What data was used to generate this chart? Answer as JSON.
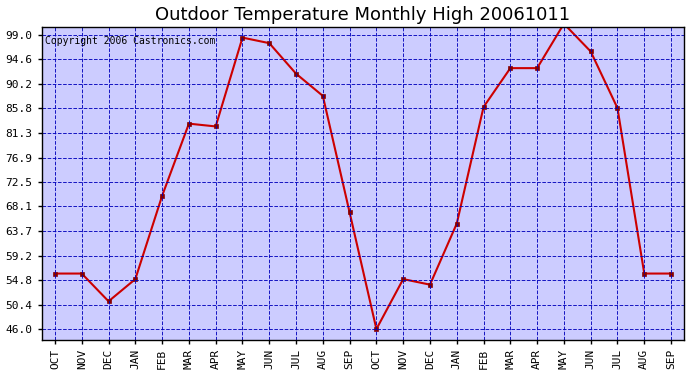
{
  "title": "Outdoor Temperature Monthly High 20061011",
  "copyright": "Copyright 2006 Castronics.com",
  "x_labels": [
    "OCT",
    "NOV",
    "DEC",
    "JAN",
    "FEB",
    "MAR",
    "APR",
    "MAY",
    "JUN",
    "JUL",
    "AUG",
    "SEP",
    "OCT",
    "NOV",
    "DEC",
    "JAN",
    "FEB",
    "MAR",
    "APR",
    "MAY",
    "JUN",
    "JUL",
    "AUG",
    "SEP"
  ],
  "temperatures": [
    56.0,
    56.0,
    51.0,
    55.0,
    70.0,
    83.0,
    82.5,
    98.5,
    97.5,
    92.0,
    88.0,
    67.0,
    46.0,
    55.0,
    54.0,
    65.0,
    86.0,
    93.0,
    93.0,
    101.0,
    96.0,
    85.8,
    56.0,
    56.0
  ],
  "y_ticks": [
    46.0,
    50.4,
    54.8,
    59.2,
    63.7,
    68.1,
    72.5,
    76.9,
    81.3,
    85.8,
    90.2,
    94.6,
    99.0
  ],
  "ylim_min": 44.0,
  "ylim_max": 100.5,
  "line_color": "#CC0000",
  "marker_color": "#880000",
  "bg_color": "#CCCCFF",
  "grid_color": "#0000BB",
  "border_color": "#000000",
  "title_fontsize": 13,
  "copyright_fontsize": 7,
  "tick_fontsize": 8
}
